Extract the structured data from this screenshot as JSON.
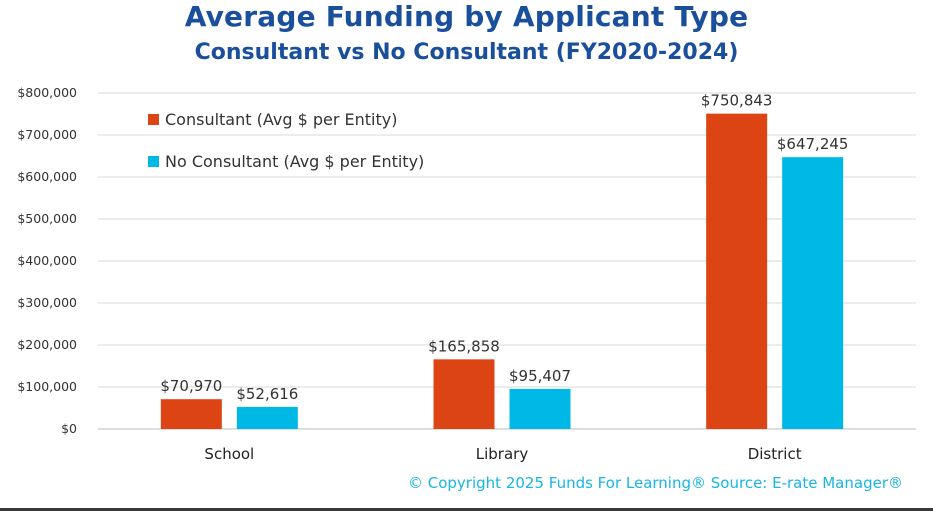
{
  "footer": {
    "copyright": "© Copyright 2025 Funds For Learning® Source: E-rate Manager®"
  },
  "chart_data": {
    "type": "bar",
    "title": "Average Funding by Applicant Type",
    "subtitle": "Consultant vs No Consultant (FY2020-2024)",
    "xlabel": "",
    "ylabel": "",
    "categories": [
      "School",
      "Library",
      "District"
    ],
    "series": [
      {
        "name": "Consultant (Avg $ per Entity)",
        "color": "#dd4414",
        "values": [
          70970,
          165858,
          750843
        ],
        "labels": [
          "$70,970",
          "$165,858",
          "$750,843"
        ]
      },
      {
        "name": "No Consultant (Avg $ per Entity)",
        "color": "#00b8e6",
        "values": [
          52616,
          95407,
          647245
        ],
        "labels": [
          "$52,616",
          "$95,407",
          "$647,245"
        ]
      }
    ],
    "ylim": [
      0,
      800000
    ],
    "yticks": [
      0,
      100000,
      200000,
      300000,
      400000,
      500000,
      600000,
      700000,
      800000
    ],
    "ytick_labels": [
      "$0",
      "$100,000",
      "$200,000",
      "$300,000",
      "$400,000",
      "$500,000",
      "$600,000",
      "$700,000",
      "$800,000"
    ],
    "grid": true,
    "legend_position": "top-left"
  }
}
